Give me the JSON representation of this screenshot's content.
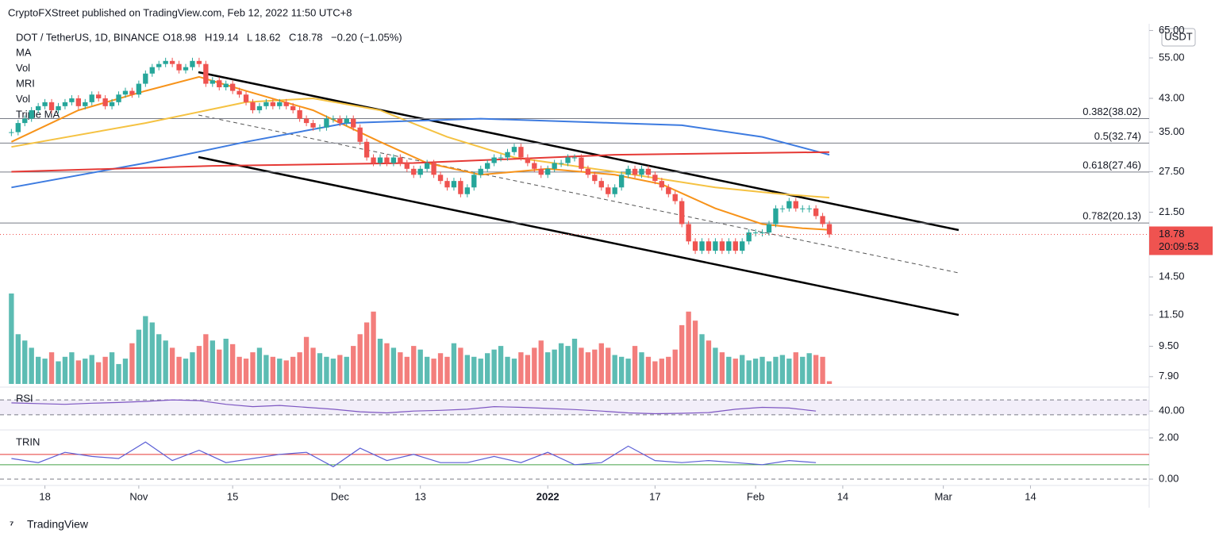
{
  "header": "CryptoFXStreet published on TradingView.com, Feb 12, 2022 11:50 UTC+8",
  "symbol": "DOT / TetherUS, 1D, BINANCE",
  "legend_ohlc": [
    {
      "label": "O",
      "value": "18.98"
    },
    {
      "label": "H",
      "value": "19.14"
    },
    {
      "label": "L",
      "value": "18.62"
    },
    {
      "label": "C",
      "value": "18.78"
    }
  ],
  "change": "−0.20 (−1.05%)",
  "indicators": [
    "MA",
    "Vol",
    "MRI",
    "Vol",
    "Triple MA"
  ],
  "currency": "USDT",
  "countdown": "20:09:53",
  "footer": "TradingView",
  "chart_data": {
    "type": "candlestick",
    "log_scale": true,
    "xlim": [
      -1.7,
      169.7
    ],
    "xticks": [
      {
        "value": 5,
        "label": "18"
      },
      {
        "value": 19,
        "label": "Nov"
      },
      {
        "value": 33,
        "label": "15"
      },
      {
        "value": 49,
        "label": "Dec"
      },
      {
        "value": 61,
        "label": "13"
      },
      {
        "value": 80,
        "label": "2022"
      },
      {
        "value": 96,
        "label": "17"
      },
      {
        "value": 111,
        "label": "Feb"
      },
      {
        "value": 124,
        "label": "14"
      },
      {
        "value": 139,
        "label": "Mar"
      },
      {
        "value": 152,
        "label": "14"
      }
    ],
    "ylim": [
      7.52,
      67.7
    ],
    "yticks": [
      {
        "value": 65,
        "label": "65.00"
      },
      {
        "value": 55,
        "label": "55.00"
      },
      {
        "value": 43,
        "label": "43.00"
      },
      {
        "value": 35,
        "label": "35.00"
      },
      {
        "value": 27.5,
        "label": "27.50"
      },
      {
        "value": 21.5,
        "label": "21.50"
      },
      {
        "value": 14.5,
        "label": "14.50"
      },
      {
        "value": 11.5,
        "label": "11.50"
      },
      {
        "value": 9.5,
        "label": "9.50"
      },
      {
        "value": 7.9,
        "label": "7.90"
      }
    ],
    "up_color": "#26a69a",
    "down_color": "#ef5350",
    "close": [
      35,
      37,
      38,
      40,
      41,
      42,
      40,
      41,
      42,
      43,
      41,
      42,
      44,
      43,
      41,
      42,
      44,
      45,
      44,
      47,
      50,
      52,
      53,
      54,
      53,
      51,
      52,
      54,
      53,
      47,
      48,
      46,
      47,
      45,
      44,
      42,
      40,
      41,
      42,
      41,
      42,
      41,
      40,
      38,
      37,
      36,
      36,
      38,
      38,
      37,
      38,
      36,
      33,
      30,
      29,
      30,
      29,
      30,
      29,
      28,
      27,
      28,
      29,
      27,
      26,
      25,
      26,
      24,
      25,
      27,
      28,
      29,
      30,
      30,
      31,
      32,
      30,
      29,
      28,
      27,
      28,
      29,
      29,
      30,
      30,
      28,
      27,
      26,
      25,
      24,
      25,
      27,
      28,
      27,
      28,
      27,
      26,
      25,
      24,
      23,
      20,
      18,
      17,
      18,
      17,
      18,
      17,
      18,
      17,
      18,
      19,
      19,
      19,
      20,
      22,
      22,
      23,
      22,
      22,
      22,
      21,
      20,
      18.78
    ],
    "last_price": {
      "value": 18.78,
      "label": "18.78"
    },
    "volume_ylim": [
      0,
      100
    ],
    "volume": [
      100,
      55,
      48,
      40,
      30,
      28,
      35,
      25,
      30,
      35,
      26,
      28,
      32,
      24,
      30,
      35,
      22,
      28,
      45,
      60,
      75,
      68,
      55,
      48,
      40,
      30,
      28,
      35,
      42,
      55,
      48,
      38,
      50,
      44,
      30,
      28,
      35,
      40,
      32,
      30,
      28,
      26,
      30,
      35,
      52,
      40,
      34,
      30,
      28,
      32,
      30,
      42,
      55,
      68,
      80,
      50,
      45,
      40,
      35,
      30,
      42,
      38,
      30,
      28,
      34,
      30,
      45,
      40,
      32,
      30,
      28,
      34,
      38,
      42,
      30,
      28,
      35,
      32,
      40,
      48,
      35,
      38,
      45,
      42,
      50,
      40,
      35,
      38,
      45,
      40,
      32,
      30,
      28,
      42,
      35,
      30,
      25,
      28,
      30,
      38,
      65,
      80,
      70,
      55,
      48,
      40,
      35,
      30,
      28,
      32,
      26,
      28,
      30,
      25,
      30,
      32,
      28,
      35,
      30,
      34,
      32,
      30,
      3
    ],
    "fib_levels": [
      {
        "value": 38.02,
        "label": "0.382(38.02)"
      },
      {
        "value": 32.74,
        "label": "0.5(32.74)"
      },
      {
        "value": 27.46,
        "label": "0.618(27.46)"
      },
      {
        "value": 20.13,
        "label": "0.782(20.13)"
      }
    ],
    "moving_averages": [
      {
        "color": "#f5c242",
        "x": [
          0,
          20,
          35,
          45,
          55,
          65,
          75,
          90,
          105,
          115,
          122
        ],
        "values": [
          32,
          37,
          42,
          43,
          40,
          34,
          30,
          27.5,
          25,
          24,
          23.5
        ]
      },
      {
        "color": "#f7931a",
        "x": [
          0,
          10,
          20,
          28,
          35,
          45,
          55,
          62,
          70,
          80,
          90,
          97,
          105,
          112,
          118,
          122
        ],
        "values": [
          33,
          40,
          45,
          49,
          45,
          40,
          33,
          29,
          27,
          28,
          27,
          25.5,
          22,
          20,
          19.5,
          19.3
        ]
      },
      {
        "color": "#3d7be0",
        "x": [
          0,
          20,
          35,
          50,
          70,
          90,
          100,
          112,
          122
        ],
        "values": [
          25,
          29,
          33,
          37,
          38,
          37,
          36.5,
          34,
          30.5
        ]
      },
      {
        "color": "#e53935",
        "x": [
          0,
          30,
          60,
          90,
          122
        ],
        "values": [
          27.5,
          28.5,
          29,
          30.5,
          31
        ]
      }
    ],
    "rsi": {
      "title": "RSI",
      "color": "#7e57c2",
      "ylim": [
        0,
        100
      ],
      "yticks": [
        {
          "value": 40,
          "label": "40.00"
        }
      ],
      "levels": [
        70,
        30
      ],
      "x": [
        0,
        4,
        8,
        12,
        16,
        20,
        24,
        28,
        32,
        36,
        40,
        44,
        48,
        52,
        56,
        60,
        64,
        68,
        72,
        76,
        80,
        84,
        88,
        92,
        96,
        100,
        104,
        108,
        112,
        116,
        120
      ],
      "values": [
        62,
        60,
        58,
        61,
        63,
        66,
        70,
        68,
        58,
        52,
        55,
        50,
        45,
        38,
        35,
        40,
        42,
        45,
        52,
        50,
        47,
        44,
        40,
        35,
        33,
        34,
        36,
        45,
        50,
        48,
        40
      ]
    },
    "trin": {
      "title": "TRIN",
      "color": "#5b5fd6",
      "ylim": [
        -0.23,
        2.27
      ],
      "yticks": [
        {
          "value": 2,
          "label": "2.00"
        },
        {
          "value": 0,
          "label": "0.00"
        }
      ],
      "levels": [
        {
          "value": 1.2,
          "color": "#e53935"
        },
        {
          "value": 0.7,
          "color": "#43a047"
        }
      ],
      "x": [
        0,
        4,
        8,
        12,
        16,
        20,
        24,
        28,
        32,
        36,
        40,
        44,
        48,
        52,
        56,
        60,
        64,
        68,
        72,
        76,
        80,
        84,
        88,
        92,
        96,
        100,
        104,
        108,
        112,
        116,
        120
      ],
      "values": [
        1.0,
        0.8,
        1.3,
        1.1,
        1.0,
        1.8,
        0.9,
        1.4,
        0.8,
        1.0,
        1.2,
        1.3,
        0.6,
        1.5,
        0.9,
        1.2,
        0.8,
        0.8,
        1.1,
        0.8,
        1.3,
        0.7,
        0.8,
        1.6,
        0.9,
        0.8,
        0.9,
        0.8,
        0.7,
        0.9,
        0.8
      ]
    }
  }
}
